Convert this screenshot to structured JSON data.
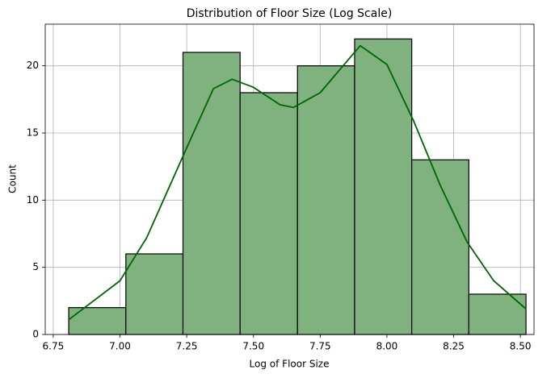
{
  "chart_data": {
    "type": "histogram",
    "title": "Distribution of Floor Size (Log Scale)",
    "x_label": "Log of Floor Size",
    "y_label": "Count",
    "bins": [
      6.808,
      7.022,
      7.236,
      7.45,
      7.665,
      7.879,
      8.093,
      8.307,
      8.521
    ],
    "counts": [
      2,
      6,
      21,
      18,
      20,
      22,
      13,
      3
    ],
    "color": "#80b27f",
    "edge_color": "#000000",
    "kde": {
      "color": "#006400",
      "x": [
        6.808,
        7.0,
        7.1,
        7.25,
        7.35,
        7.42,
        7.5,
        7.6,
        7.65,
        7.75,
        7.9,
        8.0,
        8.1,
        8.2,
        8.3,
        8.4,
        8.521
      ],
      "values": [
        1.1,
        4.0,
        7.2,
        13.9,
        18.3,
        19.0,
        18.4,
        17.1,
        16.9,
        18.0,
        21.5,
        20.1,
        15.9,
        11.1,
        6.9,
        4.0,
        1.9
      ]
    },
    "xlim": [
      6.72,
      8.551
    ],
    "ylim": [
      0,
      23.1
    ],
    "xticks": [
      6.75,
      {
        "value": 7.0,
        "label": "7.00"
      },
      7.25,
      {
        "value": 7.5,
        "label": "7.50"
      },
      7.75,
      {
        "value": 8.0,
        "label": "8.00"
      },
      8.25,
      {
        "value": 8.5,
        "label": "8.50"
      }
    ],
    "yticks": [
      0,
      5,
      10,
      15,
      20
    ],
    "grid": true
  }
}
